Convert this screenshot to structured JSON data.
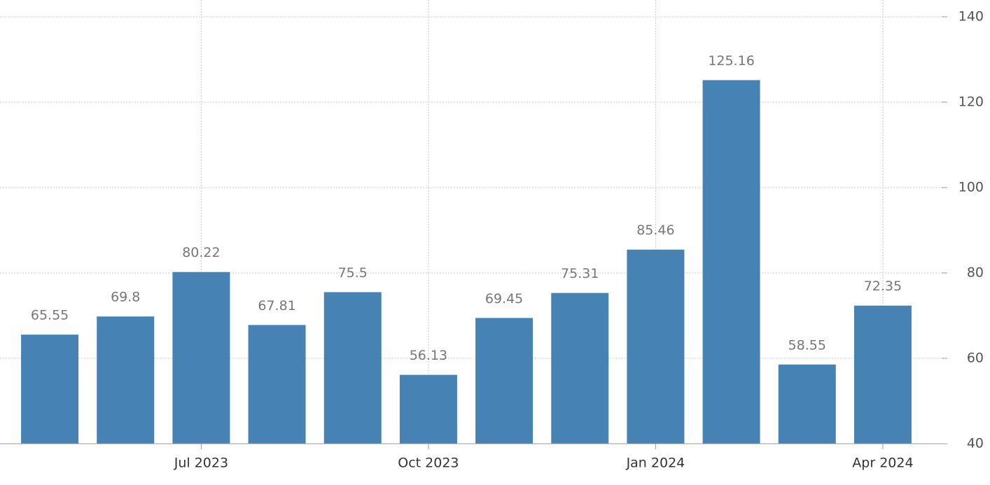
{
  "chart_data": {
    "type": "bar",
    "categories": [
      null,
      null,
      "Jul 2023",
      null,
      null,
      "Oct 2023",
      null,
      null,
      "Jan 2024",
      null,
      null,
      "Apr 2024"
    ],
    "values": [
      65.55,
      69.8,
      80.22,
      67.81,
      75.5,
      56.13,
      69.45,
      75.31,
      85.46,
      125.16,
      58.55,
      72.35
    ],
    "color": "#4682b4",
    "ylim": [
      40,
      140
    ],
    "yticks": [
      40,
      60,
      80,
      100,
      120,
      140
    ],
    "grid": true
  }
}
